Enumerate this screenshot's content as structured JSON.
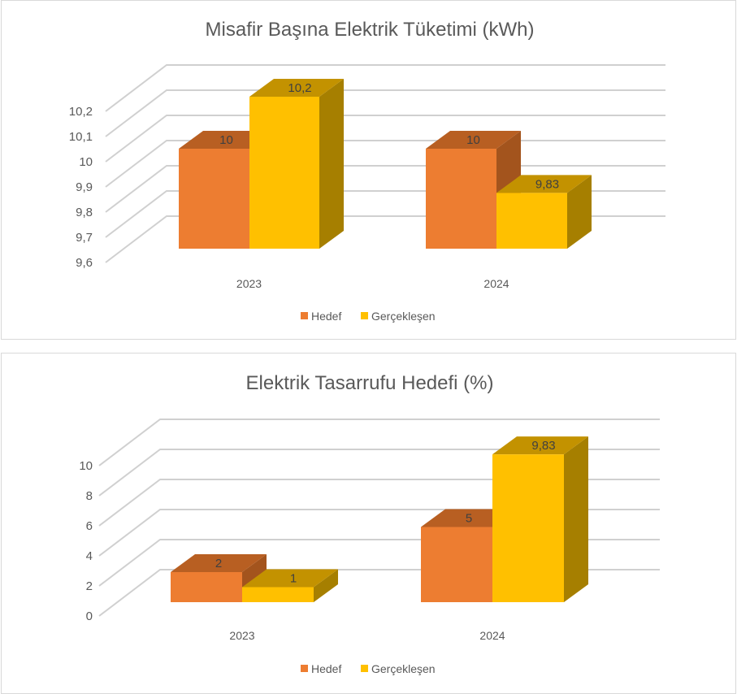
{
  "colors": {
    "hedef": "#ED7D31",
    "hedef_top": "#B85F22",
    "hedef_side": "#A3541D",
    "gerceklesen": "#FFC000",
    "gerceklesen_top": "#C39200",
    "gerceklesen_side": "#A67F00",
    "grid": "#d0d0d0",
    "text": "#595959"
  },
  "chart_data": [
    {
      "type": "bar",
      "title": "Misafir Başına Elektrik Tüketimi (kWh)",
      "categories": [
        "2023",
        "2024"
      ],
      "series": [
        {
          "name": "Hedef",
          "values": [
            10,
            10
          ],
          "labels": [
            "10",
            "10"
          ]
        },
        {
          "name": "Gerçekleşen",
          "values": [
            10.2,
            9.83
          ],
          "labels": [
            "10,2",
            "9,83"
          ]
        }
      ],
      "ylim": [
        9.6,
        10.2
      ],
      "ticks": [
        9.6,
        9.7,
        9.8,
        9.9,
        10,
        10.1,
        10.2
      ],
      "tick_labels": [
        "9,6",
        "9,7",
        "9,8",
        "9,9",
        "10",
        "10,1",
        "10,2"
      ],
      "grid": true,
      "legend": "bottom"
    },
    {
      "type": "bar",
      "title": "Elektrik Tasarrufu Hedefi (%)",
      "categories": [
        "2023",
        "2024"
      ],
      "series": [
        {
          "name": "Hedef",
          "values": [
            2,
            5
          ],
          "labels": [
            "2",
            "5"
          ]
        },
        {
          "name": "Gerçekleşen",
          "values": [
            1,
            9.83
          ],
          "labels": [
            "1",
            "9,83"
          ]
        }
      ],
      "ylim": [
        0,
        10
      ],
      "ticks": [
        0,
        2,
        4,
        6,
        8,
        10
      ],
      "tick_labels": [
        "0",
        "2",
        "4",
        "6",
        "8",
        "10"
      ],
      "grid": true,
      "legend": "bottom"
    }
  ]
}
